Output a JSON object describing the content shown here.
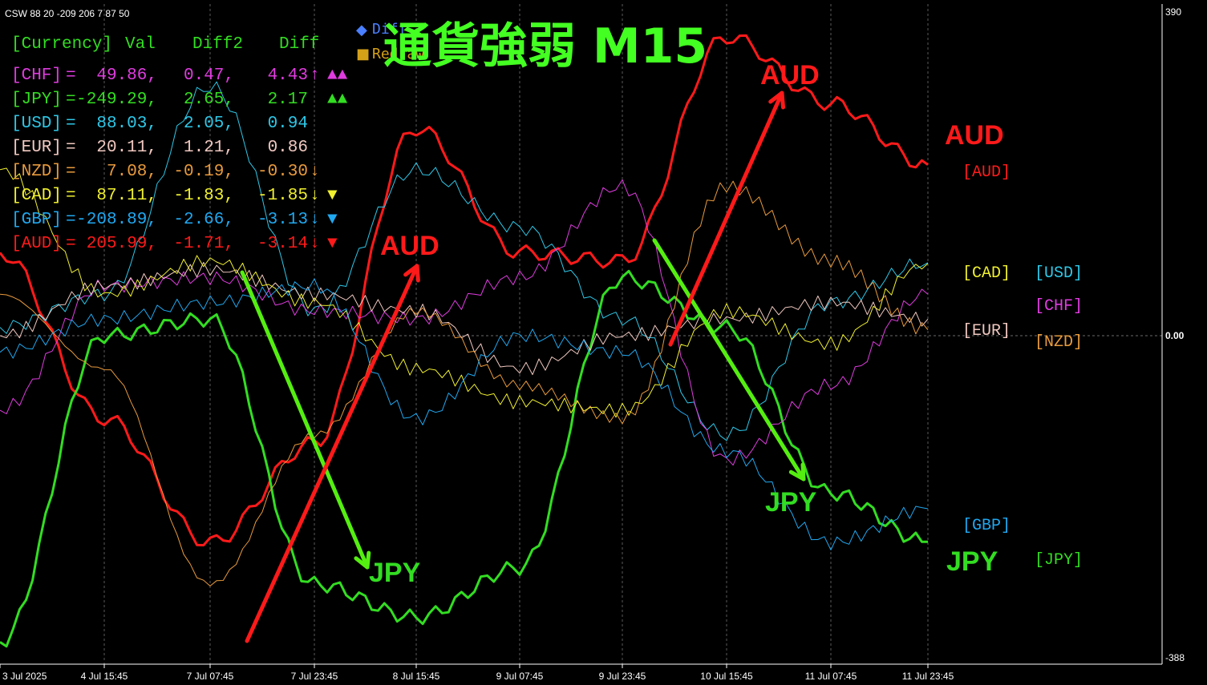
{
  "header": {
    "indicator_label": "CSW 88 20 -209 206 7 87 50",
    "title": "通貨強弱 M15",
    "legend_toggles": [
      {
        "glyph": "◆",
        "label": "Diff",
        "color": "#4a7fff"
      },
      {
        "glyph": "■",
        "label": "Redraw",
        "color": "#d4a017"
      }
    ]
  },
  "colors": {
    "background": "#000000",
    "grid": "#5a5a5a",
    "axis": "#ffffff",
    "CHF": "#e03ce0",
    "JPY": "#33dd22",
    "USD": "#2ec8e8",
    "EUR": "#f0c8c0",
    "NZD": "#e89a3c",
    "CAD": "#f0f030",
    "GBP": "#20a8f0",
    "AUD": "#ff1a1a",
    "JPY_label": "#33dd22"
  },
  "table": {
    "headers": [
      "[Currency]",
      "Val",
      "Diff2",
      "Diff"
    ],
    "rows": [
      {
        "cur": "[CHF]",
        "eq": "=",
        "val": "49.86,",
        "diff2": "0.47,",
        "diff": "4.43",
        "arrow": "↑",
        "marks": "▲▲",
        "color": "#e03ce0"
      },
      {
        "cur": "[JPY]",
        "eq": "=",
        "val": "-249.29,",
        "diff2": "2.65,",
        "diff": "2.17",
        "arrow": "",
        "marks": "▲▲",
        "color": "#33dd22"
      },
      {
        "cur": "[USD]",
        "eq": "=",
        "val": "88.03,",
        "diff2": "2.05,",
        "diff": "0.94",
        "arrow": "",
        "marks": "",
        "color": "#2ec8e8"
      },
      {
        "cur": "[EUR]",
        "eq": "=",
        "val": "20.11,",
        "diff2": "1.21,",
        "diff": "0.86",
        "arrow": "",
        "marks": "",
        "color": "#f0c8c0"
      },
      {
        "cur": "[NZD]",
        "eq": "=",
        "val": "7.08,",
        "diff2": "-0.19,",
        "diff": "-0.30",
        "arrow": "↓",
        "marks": "",
        "color": "#e89a3c"
      },
      {
        "cur": "[CAD]",
        "eq": "=",
        "val": "87.11,",
        "diff2": "-1.83,",
        "diff": "-1.85",
        "arrow": "↓",
        "marks": "▼",
        "color": "#f0f030"
      },
      {
        "cur": "[GBP]",
        "eq": "=",
        "val": "-208.89,",
        "diff2": "-2.66,",
        "diff": "-3.13",
        "arrow": "↓",
        "marks": "▼",
        "color": "#20a8f0"
      },
      {
        "cur": "[AUD]",
        "eq": "=",
        "val": "205.99,",
        "diff2": "-1.71,",
        "diff": "-3.14",
        "arrow": "↓",
        "marks": "▼",
        "color": "#ff1a1a"
      }
    ]
  },
  "axis": {
    "y_top": "390",
    "y_zero": "0.00",
    "y_bottom": "-388",
    "x_ticks": [
      "3 Jul 2025",
      "4 Jul 15:45",
      "7 Jul 07:45",
      "7 Jul 23:45",
      "8 Jul 15:45",
      "9 Jul 07:45",
      "9 Jul 23:45",
      "10 Jul 15:45",
      "11 Jul 07:45",
      "11 Jul 23:45"
    ]
  },
  "right_labels": [
    {
      "text": "AUD",
      "big": true,
      "color": "#ff1a1a"
    },
    {
      "text": "[AUD]",
      "big": false,
      "color": "#ff1a1a"
    },
    {
      "text": "[CAD]",
      "big": false,
      "color": "#f0f030"
    },
    {
      "text": "[USD]",
      "big": false,
      "color": "#2ec8e8"
    },
    {
      "text": "[CHF]",
      "big": false,
      "color": "#e03ce0"
    },
    {
      "text": "[EUR]",
      "big": false,
      "color": "#f0c8c0"
    },
    {
      "text": "[NZD]",
      "big": false,
      "color": "#e89a3c"
    },
    {
      "text": "[GBP]",
      "big": false,
      "color": "#20a8f0"
    },
    {
      "text": "JPY",
      "big": true,
      "color": "#33dd22"
    },
    {
      "text": "[JPY]",
      "big": false,
      "color": "#33dd22"
    }
  ],
  "annotations": [
    {
      "text": "AUD",
      "color": "#ff1a1a",
      "kind": "red-arrow-label"
    },
    {
      "text": "JPY",
      "color": "#33dd22",
      "kind": "green-arrow-label"
    },
    {
      "text": "AUD",
      "color": "#ff1a1a",
      "kind": "red-arrow-label"
    },
    {
      "text": "JPY",
      "color": "#33dd22",
      "kind": "green-arrow-label"
    }
  ],
  "chart_data": {
    "type": "line",
    "title": "通貨強弱 M15",
    "ylim": [
      -388,
      390
    ],
    "x": [
      "3 Jul 2025",
      "4 Jul 15:45",
      "7 Jul 07:45",
      "7 Jul 23:45",
      "8 Jul 15:45",
      "9 Jul 07:45",
      "9 Jul 23:45",
      "10 Jul 15:45",
      "11 Jul 07:45",
      "11 Jul 23:45"
    ],
    "series": [
      {
        "name": "AUD",
        "color": "#ff1a1a",
        "values": [
          100,
          -100,
          -250,
          -130,
          250,
          100,
          90,
          360,
          280,
          206
        ]
      },
      {
        "name": "JPY",
        "color": "#33dd22",
        "values": [
          -370,
          0,
          20,
          -300,
          -340,
          -280,
          70,
          10,
          -190,
          -249
        ]
      },
      {
        "name": "USD",
        "color": "#2ec8e8",
        "values": [
          10,
          50,
          300,
          30,
          200,
          130,
          20,
          -120,
          40,
          88
        ]
      },
      {
        "name": "CHF",
        "color": "#e03ce0",
        "values": [
          -90,
          60,
          70,
          30,
          20,
          70,
          180,
          -150,
          -60,
          50
        ]
      },
      {
        "name": "EUR",
        "color": "#f0c8c0",
        "values": [
          0,
          60,
          80,
          50,
          30,
          -40,
          0,
          20,
          40,
          20
        ]
      },
      {
        "name": "NZD",
        "color": "#e89a3c",
        "values": [
          50,
          -40,
          -300,
          -120,
          30,
          -60,
          -100,
          180,
          90,
          7
        ]
      },
      {
        "name": "CAD",
        "color": "#f0f030",
        "values": [
          200,
          50,
          90,
          40,
          -40,
          -80,
          -90,
          30,
          -10,
          87
        ]
      },
      {
        "name": "GBP",
        "color": "#20a8f0",
        "values": [
          -20,
          20,
          40,
          60,
          -100,
          0,
          -20,
          -140,
          -250,
          -209
        ]
      }
    ]
  }
}
